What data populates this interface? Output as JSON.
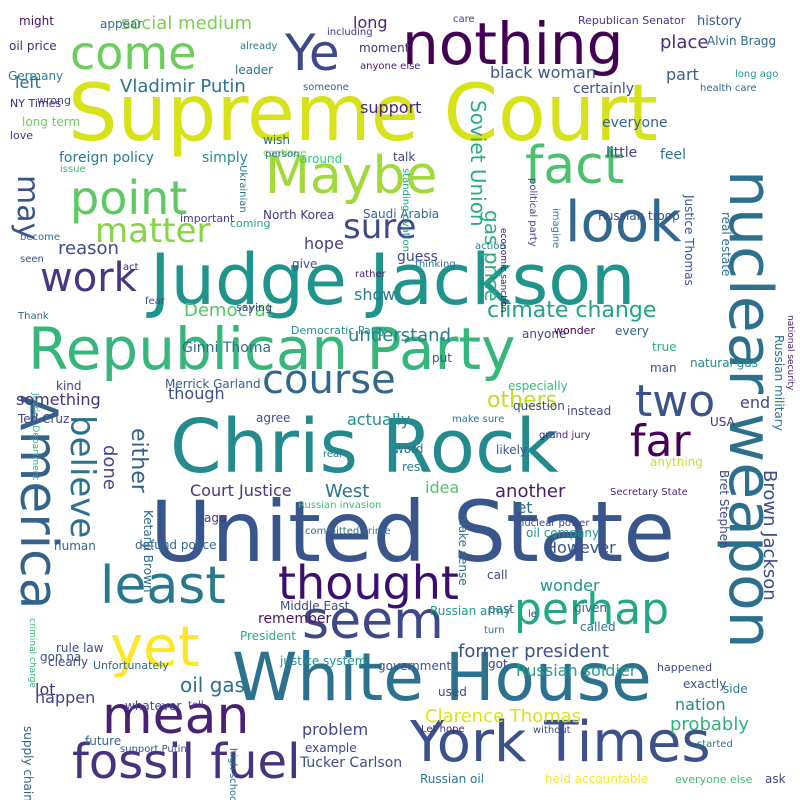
{
  "words": [
    {
      "text": "Supreme Court",
      "color": "#d8e219",
      "weight": "major"
    },
    {
      "text": "Judge Jackson",
      "color": "#1f948c",
      "weight": "major"
    },
    {
      "text": "United State",
      "color": "#39568c",
      "weight": "major"
    },
    {
      "text": "Chris Rock",
      "color": "#238a8d",
      "weight": "major"
    },
    {
      "text": "White House",
      "color": "#2c728e",
      "weight": "major"
    },
    {
      "text": "Republican Party",
      "color": "#35b779",
      "weight": "major"
    },
    {
      "text": "nothing",
      "color": "#440154",
      "weight": "major"
    },
    {
      "text": "York Times",
      "color": "#3b518b",
      "weight": "major"
    },
    {
      "text": "nuclear weapon",
      "color": "#2d708e",
      "weight": "major"
    },
    {
      "text": "America",
      "color": "#33638d",
      "weight": "major"
    },
    {
      "text": "fossil fuel",
      "color": "#46327e",
      "weight": "major"
    },
    {
      "text": "Maybe",
      "color": "#a0da39",
      "weight": "major"
    },
    {
      "text": "fact",
      "color": "#4ac16d",
      "weight": "major"
    },
    {
      "text": "look",
      "color": "#31688e",
      "weight": "major"
    },
    {
      "text": "mean",
      "color": "#482173",
      "weight": "major"
    },
    {
      "text": "seem",
      "color": "#3e4989",
      "weight": "major"
    },
    {
      "text": "least",
      "color": "#2a788e",
      "weight": "major"
    },
    {
      "text": "thought",
      "color": "#3b0f70",
      "weight": "major"
    },
    {
      "text": "point",
      "color": "#5ec962",
      "weight": "major"
    },
    {
      "text": "come",
      "color": "#6ccd5a",
      "weight": "major"
    },
    {
      "text": "course",
      "color": "#31688e",
      "weight": "major"
    },
    {
      "text": "perhap",
      "color": "#22a884",
      "weight": "major"
    },
    {
      "text": "Ye",
      "color": "#3e4989",
      "weight": "major"
    },
    {
      "text": "yet",
      "color": "#fde725",
      "weight": "major"
    },
    {
      "text": "two",
      "color": "#3b528b",
      "weight": "major"
    },
    {
      "text": "far",
      "color": "#440154",
      "weight": "major"
    },
    {
      "text": "work",
      "color": "#453781",
      "weight": "major"
    },
    {
      "text": "sure",
      "color": "#3f4a8a",
      "weight": "major"
    },
    {
      "text": "matter",
      "color": "#86d549",
      "weight": "major"
    },
    {
      "text": "believe",
      "color": "#2c728e",
      "weight": "major"
    },
    {
      "text": "may",
      "color": "#3b528b",
      "weight": "major"
    },
    {
      "text": "others",
      "color": "#bddf26",
      "weight": "minor"
    },
    {
      "text": "either",
      "color": "#355f8d",
      "weight": "minor"
    },
    {
      "text": "Democrat",
      "color": "#52c569",
      "weight": "minor"
    },
    {
      "text": "climate change",
      "color": "#20a386",
      "weight": "minor"
    },
    {
      "text": "understand",
      "color": "#287d8e",
      "weight": "minor"
    },
    {
      "text": "Soviet Union",
      "color": "#27ad81",
      "weight": "minor"
    },
    {
      "text": "gas price",
      "color": "#29af7f",
      "weight": "minor"
    },
    {
      "text": "black woman",
      "color": "#38588c",
      "weight": "minor"
    },
    {
      "text": "support",
      "color": "#482677",
      "weight": "minor"
    },
    {
      "text": "part",
      "color": "#33638d",
      "weight": "minor"
    },
    {
      "text": "place",
      "color": "#472c7a",
      "weight": "minor"
    },
    {
      "text": "long",
      "color": "#482475",
      "weight": "minor"
    },
    {
      "text": "social medium",
      "color": "#7ad151",
      "weight": "minor"
    },
    {
      "text": "Vladimir Putin",
      "color": "#2c728e",
      "weight": "minor"
    },
    {
      "text": "reason",
      "color": "#3c4f8a",
      "weight": "minor"
    },
    {
      "text": "hope",
      "color": "#424086",
      "weight": "minor"
    },
    {
      "text": "show",
      "color": "#297a8e",
      "weight": "minor"
    },
    {
      "text": "something",
      "color": "#46307e",
      "weight": "minor"
    },
    {
      "text": "though",
      "color": "#3e4c8a",
      "weight": "minor"
    },
    {
      "text": "actually",
      "color": "#228b8d",
      "weight": "minor"
    },
    {
      "text": "West",
      "color": "#2c718e",
      "weight": "minor"
    },
    {
      "text": "Court Justice",
      "color": "#453882",
      "weight": "minor"
    },
    {
      "text": "another",
      "color": "#481b6d",
      "weight": "minor"
    },
    {
      "text": "idea",
      "color": "#54c568",
      "weight": "minor"
    },
    {
      "text": "let",
      "color": "#2d708e",
      "weight": "minor"
    },
    {
      "text": "end",
      "color": "#404688",
      "weight": "minor"
    },
    {
      "text": "Brown Jackson",
      "color": "#3e4a89",
      "weight": "minor"
    },
    {
      "text": "However",
      "color": "#3b528b",
      "weight": "minor"
    },
    {
      "text": "wonder",
      "color": "#20928c",
      "weight": "minor"
    },
    {
      "text": "former president",
      "color": "#3b528b",
      "weight": "minor"
    },
    {
      "text": "Russian soldier",
      "color": "#1fa287",
      "weight": "minor"
    },
    {
      "text": "oil gas",
      "color": "#2d708e",
      "weight": "minor"
    },
    {
      "text": "happen",
      "color": "#414487",
      "weight": "minor"
    },
    {
      "text": "lot",
      "color": "#46337f",
      "weight": "minor"
    },
    {
      "text": "Clarence Thomas",
      "color": "#dde318",
      "weight": "minor"
    },
    {
      "text": "problem",
      "color": "#3f4889",
      "weight": "minor"
    },
    {
      "text": "nation",
      "color": "#24868e",
      "weight": "minor"
    },
    {
      "text": "probably",
      "color": "#2db27d",
      "weight": "minor"
    },
    {
      "text": "done",
      "color": "#414487",
      "weight": "minor"
    },
    {
      "text": "remember",
      "color": "#481668",
      "weight": "minor"
    },
    {
      "text": "Tucker Carlson",
      "color": "#3d4e8a",
      "weight": "minor"
    },
    {
      "text": "Ginni Thoma",
      "color": "#2e6e8e",
      "weight": "minor"
    },
    {
      "text": "might",
      "color": "#471063",
      "weight": "minor"
    },
    {
      "text": "appear",
      "color": "#31688e",
      "weight": "minor"
    },
    {
      "text": "oil price",
      "color": "#482878",
      "weight": "minor"
    },
    {
      "text": "Germany",
      "color": "#26828e",
      "weight": "minor"
    },
    {
      "text": "wrong",
      "color": "#3e4989",
      "weight": "minor"
    },
    {
      "text": "NY Times",
      "color": "#482979",
      "weight": "minor"
    },
    {
      "text": "love",
      "color": "#443a83",
      "weight": "minor"
    },
    {
      "text": "long term",
      "color": "#6ece58",
      "weight": "minor"
    },
    {
      "text": "left",
      "color": "#2e6f8e",
      "weight": "minor"
    },
    {
      "text": "foreign policy",
      "color": "#287c8e",
      "weight": "minor"
    },
    {
      "text": "simply",
      "color": "#21918c",
      "weight": "minor"
    },
    {
      "text": "issue",
      "color": "#3fbc73",
      "weight": "minor"
    },
    {
      "text": "including",
      "color": "#46337f",
      "weight": "minor"
    },
    {
      "text": "already",
      "color": "#2a778e",
      "weight": "minor"
    },
    {
      "text": "leader",
      "color": "#2a768e",
      "weight": "minor"
    },
    {
      "text": "moment",
      "color": "#46307e",
      "weight": "minor"
    },
    {
      "text": "anyone else",
      "color": "#482475",
      "weight": "minor"
    },
    {
      "text": "someone",
      "color": "#35608d",
      "weight": "minor"
    },
    {
      "text": "care",
      "color": "#443a83",
      "weight": "minor"
    },
    {
      "text": "Republican Senator",
      "color": "#453781",
      "weight": "minor"
    },
    {
      "text": "history",
      "color": "#39558c",
      "weight": "minor"
    },
    {
      "text": "Alvin Bragg",
      "color": "#2e6e8e",
      "weight": "minor"
    },
    {
      "text": "long ago",
      "color": "#1f968b",
      "weight": "minor"
    },
    {
      "text": "health care",
      "color": "#2f6c8e",
      "weight": "minor"
    },
    {
      "text": "certainly",
      "color": "#3c4f8a",
      "weight": "minor"
    },
    {
      "text": "everyone",
      "color": "#32648e",
      "weight": "minor"
    },
    {
      "text": "little",
      "color": "#3f4788",
      "weight": "minor"
    },
    {
      "text": "feel",
      "color": "#2c728e",
      "weight": "minor"
    },
    {
      "text": "wish",
      "color": "#2e6d8e",
      "weight": "minor"
    },
    {
      "text": "continue",
      "color": "#7fd34e",
      "weight": "minor"
    },
    {
      "text": "person",
      "color": "#2a788e",
      "weight": "minor"
    },
    {
      "text": "around",
      "color": "#30cd72",
      "weight": "minor"
    },
    {
      "text": "talk",
      "color": "#414487",
      "weight": "minor"
    },
    {
      "text": "Ukrainian",
      "color": "#2a768e",
      "weight": "minor"
    },
    {
      "text": "North Korea",
      "color": "#453781",
      "weight": "minor"
    },
    {
      "text": "Saudi Arabia",
      "color": "#31688e",
      "weight": "minor"
    },
    {
      "text": "Russian troop",
      "color": "#3c4f8a",
      "weight": "minor"
    },
    {
      "text": "Justice Thomas",
      "color": "#3a548c",
      "weight": "minor"
    },
    {
      "text": "real estate",
      "color": "#2e6f8e",
      "weight": "minor"
    },
    {
      "text": "Russian military",
      "color": "#2d708e",
      "weight": "minor"
    },
    {
      "text": "national security",
      "color": "#482071",
      "weight": "minor"
    },
    {
      "text": "economic sanction",
      "color": "#3b0f70",
      "weight": "minor"
    },
    {
      "text": "political party",
      "color": "#3f4788",
      "weight": "minor"
    },
    {
      "text": "imagine",
      "color": "#26828e",
      "weight": "minor"
    },
    {
      "text": "action",
      "color": "#287c8e",
      "weight": "minor"
    },
    {
      "text": "thinking",
      "color": "#2c728e",
      "weight": "minor"
    },
    {
      "text": "rather",
      "color": "#481f70",
      "weight": "minor"
    },
    {
      "text": "standing ovation",
      "color": "#21a685",
      "weight": "minor"
    },
    {
      "text": "guess",
      "color": "#3e4989",
      "weight": "minor"
    },
    {
      "text": "give",
      "color": "#3b518b",
      "weight": "minor"
    },
    {
      "text": "coming",
      "color": "#20a386",
      "weight": "minor"
    },
    {
      "text": "important",
      "color": "#414287",
      "weight": "minor"
    },
    {
      "text": "become",
      "color": "#2b748e",
      "weight": "minor"
    },
    {
      "text": "seen",
      "color": "#3e4c8a",
      "weight": "minor"
    },
    {
      "text": "act",
      "color": "#482576",
      "weight": "minor"
    },
    {
      "text": "fear",
      "color": "#3e4c8a",
      "weight": "minor"
    },
    {
      "text": "Thank",
      "color": "#31688e",
      "weight": "minor"
    },
    {
      "text": "saying",
      "color": "#433e85",
      "weight": "minor"
    },
    {
      "text": "Democratic Party",
      "color": "#21908d",
      "weight": "minor"
    },
    {
      "text": "anyone",
      "color": "#3f4788",
      "weight": "minor"
    },
    {
      "text": "every",
      "color": "#33628d",
      "weight": "minor"
    },
    {
      "text": "wonder2",
      "color": "#440154",
      "weight": "minor"
    },
    {
      "text": "true",
      "color": "#27ad81",
      "weight": "minor"
    },
    {
      "text": "man",
      "color": "#3b518b",
      "weight": "minor"
    },
    {
      "text": "natural gas",
      "color": "#238a8d",
      "weight": "minor"
    },
    {
      "text": "put",
      "color": "#3e4c8a",
      "weight": "minor"
    },
    {
      "text": "kind",
      "color": "#3f4788",
      "weight": "minor"
    },
    {
      "text": "Merrick Garland",
      "color": "#34608d",
      "weight": "minor"
    },
    {
      "text": "especially",
      "color": "#3aba76",
      "weight": "minor"
    },
    {
      "text": "question",
      "color": "#3f4889",
      "weight": "minor"
    },
    {
      "text": "Justice Department",
      "color": "#30b47a",
      "weight": "minor"
    },
    {
      "text": "Ted Cruz",
      "color": "#414487",
      "weight": "minor"
    },
    {
      "text": "agree",
      "color": "#3b528b",
      "weight": "minor"
    },
    {
      "text": "make sure",
      "color": "#2c728e",
      "weight": "minor"
    },
    {
      "text": "grand jury",
      "color": "#482576",
      "weight": "minor"
    },
    {
      "text": "instead",
      "color": "#3e4c8a",
      "weight": "minor"
    },
    {
      "text": "USA",
      "color": "#472d7b",
      "weight": "minor"
    },
    {
      "text": "likely",
      "color": "#3b528b",
      "weight": "minor"
    },
    {
      "text": "word",
      "color": "#2c728e",
      "weight": "minor"
    },
    {
      "text": "rest",
      "color": "#287c8e",
      "weight": "minor"
    },
    {
      "text": "real",
      "color": "#2a788e",
      "weight": "minor"
    },
    {
      "text": "Ketanji Brown",
      "color": "#2f6b8e",
      "weight": "minor"
    },
    {
      "text": "ago",
      "color": "#453882",
      "weight": "minor"
    },
    {
      "text": "Russian invasion",
      "color": "#3fbc73",
      "weight": "minor"
    },
    {
      "text": "make sense",
      "color": "#2c728e",
      "weight": "minor"
    },
    {
      "text": "nuclear power",
      "color": "#3f4889",
      "weight": "minor"
    },
    {
      "text": "anything",
      "color": "#c8e020",
      "weight": "minor"
    },
    {
      "text": "Bret Stephen",
      "color": "#3f4788",
      "weight": "minor"
    },
    {
      "text": "oil company",
      "color": "#1f988b",
      "weight": "minor"
    },
    {
      "text": "Secretary State",
      "color": "#482878",
      "weight": "minor"
    },
    {
      "text": "committed crime",
      "color": "#2c728e",
      "weight": "minor"
    },
    {
      "text": "defund police",
      "color": "#31688e",
      "weight": "minor"
    },
    {
      "text": "call",
      "color": "#3e4989",
      "weight": "minor"
    },
    {
      "text": "past",
      "color": "#3b528b",
      "weight": "minor"
    },
    {
      "text": "le",
      "color": "#3f4788",
      "weight": "minor"
    },
    {
      "text": "given",
      "color": "#33638d",
      "weight": "minor"
    },
    {
      "text": "called",
      "color": "#2c728e",
      "weight": "minor"
    },
    {
      "text": "human",
      "color": "#33638d",
      "weight": "minor"
    },
    {
      "text": "Middle East",
      "color": "#3f4889",
      "weight": "minor"
    },
    {
      "text": "Russian army",
      "color": "#1f988b",
      "weight": "minor"
    },
    {
      "text": "turn",
      "color": "#2a788e",
      "weight": "minor"
    },
    {
      "text": "rule law",
      "color": "#3e4989",
      "weight": "minor"
    },
    {
      "text": "President",
      "color": "#27ad81",
      "weight": "minor"
    },
    {
      "text": "justice system",
      "color": "#21908d",
      "weight": "minor"
    },
    {
      "text": "got",
      "color": "#414487",
      "weight": "minor"
    },
    {
      "text": "criminal charge",
      "color": "#35b779",
      "weight": "minor"
    },
    {
      "text": "gon na",
      "color": "#3b528b",
      "weight": "minor"
    },
    {
      "text": "clearly",
      "color": "#3e4989",
      "weight": "minor"
    },
    {
      "text": "Unfortunately",
      "color": "#31688e",
      "weight": "minor"
    },
    {
      "text": "government",
      "color": "#3b528b",
      "weight": "minor"
    },
    {
      "text": "happened",
      "color": "#3f4788",
      "weight": "minor"
    },
    {
      "text": "side",
      "color": "#2a788e",
      "weight": "minor"
    },
    {
      "text": "exactly",
      "color": "#3b528b",
      "weight": "minor"
    },
    {
      "text": "used",
      "color": "#3e4989",
      "weight": "minor"
    },
    {
      "text": "whatever",
      "color": "#3f4889",
      "weight": "minor"
    },
    {
      "text": "tell",
      "color": "#414487",
      "weight": "minor"
    },
    {
      "text": "supply chain",
      "color": "#33638d",
      "weight": "minor"
    },
    {
      "text": "future",
      "color": "#31688e",
      "weight": "minor"
    },
    {
      "text": "support Putin",
      "color": "#3b528b",
      "weight": "minor"
    },
    {
      "text": "high school",
      "color": "#2c728e",
      "weight": "minor"
    },
    {
      "text": "example",
      "color": "#3f4788",
      "weight": "minor"
    },
    {
      "text": "Let hope",
      "color": "#482576",
      "weight": "minor"
    },
    {
      "text": "without",
      "color": "#3e4989",
      "weight": "minor"
    },
    {
      "text": "started",
      "color": "#2a788e",
      "weight": "minor"
    },
    {
      "text": "Russian oil",
      "color": "#2a788e",
      "weight": "minor"
    },
    {
      "text": "held accountable",
      "color": "#fde725",
      "weight": "minor"
    },
    {
      "text": "everyone else",
      "color": "#3fbc73",
      "weight": "minor"
    },
    {
      "text": "ask",
      "color": "#3e4989",
      "weight": "minor"
    }
  ]
}
